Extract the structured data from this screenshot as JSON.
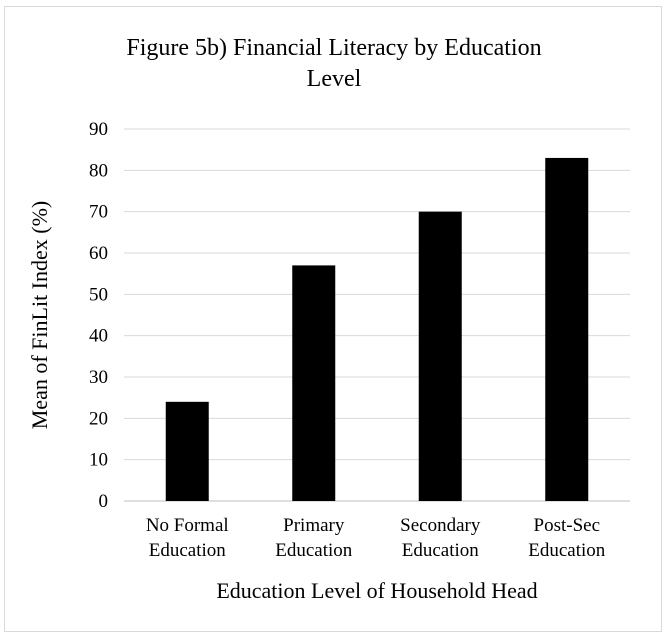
{
  "chart_data": {
    "type": "bar",
    "title_lines": [
      "Figure 5b) Financial Literacy by Education",
      "Level"
    ],
    "categories": [
      [
        "No Formal",
        "Education"
      ],
      [
        "Primary",
        "Education"
      ],
      [
        "Secondary",
        "Education"
      ],
      [
        "Post-Sec",
        "Education"
      ]
    ],
    "values": [
      24,
      57,
      70,
      83
    ],
    "xlabel": "Education Level of Household Head",
    "ylabel": "Mean of FinLit Index (%)",
    "ylim": [
      0,
      90
    ],
    "yticks": [
      0,
      10,
      20,
      30,
      40,
      50,
      60,
      70,
      80,
      90
    ],
    "grid": true,
    "legend": "none",
    "colors": {
      "bar": "#000000",
      "grid": "#d9d9d9",
      "axis": "#bfbfbf",
      "border": "#d9d9d9"
    }
  }
}
